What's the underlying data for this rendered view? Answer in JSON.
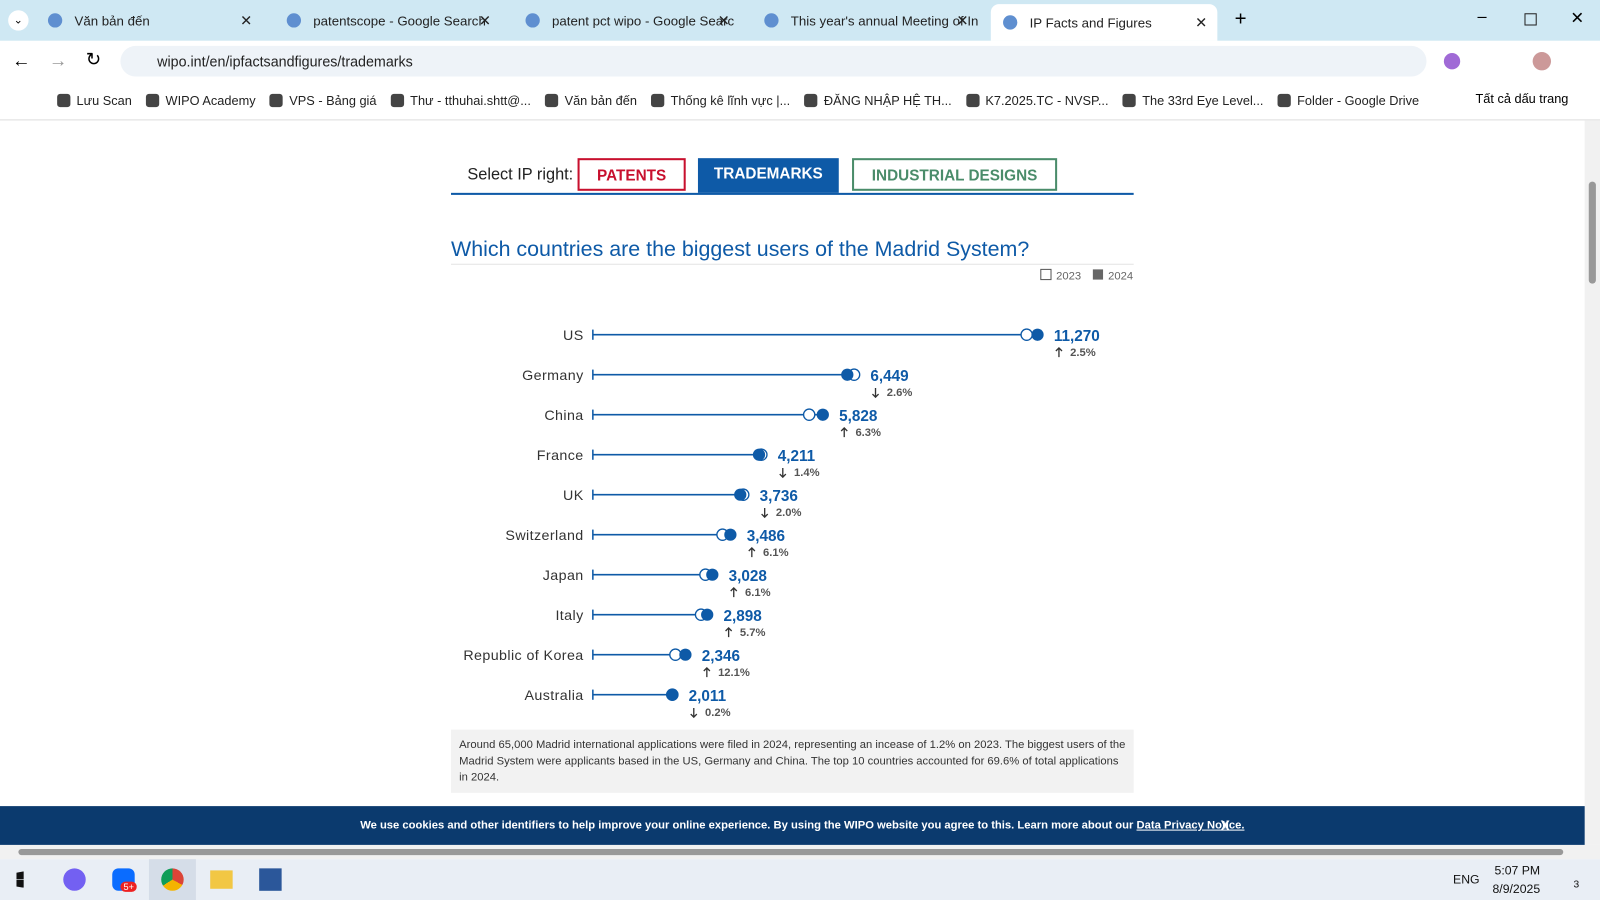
{
  "tabs": [
    {
      "title": "Văn bản đến"
    },
    {
      "title": "patentscope - Google Search"
    },
    {
      "title": "patent pct wipo - Google Searc"
    },
    {
      "title": "This year's annual Meeting of In"
    },
    {
      "title": "IP Facts and Figures"
    }
  ],
  "url": "wipo.int/en/ipfactsandfigures/trademarks",
  "bookmarks": [
    "Lưu Scan",
    "WIPO Academy",
    "VPS - Bảng giá",
    "Thư - tthuhai.shtt@...",
    "Văn bản đến",
    "Thống kê lĩnh vực |...",
    "ĐĂNG NHẬP HỆ TH...",
    "K7.2025.TC - NVSP...",
    "The 33rd Eye Level...",
    "Folder - Google Drive"
  ],
  "all_bookmarks": "Tất cả dấu trang",
  "selector": {
    "label": "Select IP right:",
    "options": [
      "PATENTS",
      "TRADEMARKS",
      "INDUSTRIAL DESIGNS"
    ]
  },
  "chart_data": {
    "type": "dumbbell",
    "title": "Which countries are the biggest users of the Madrid System?",
    "categories": [
      "US",
      "Germany",
      "China",
      "France",
      "UK",
      "Switzerland",
      "Japan",
      "Italy",
      "Republic of Korea",
      "Australia"
    ],
    "series": [
      {
        "name": "2023",
        "color": "#0e5aa7",
        "values": [
          10995,
          6621,
          5483,
          4271,
          3812,
          3286,
          2854,
          2742,
          2093,
          2015
        ]
      },
      {
        "name": "2024",
        "color": "#0e5aa7",
        "values": [
          11270,
          6449,
          5828,
          4211,
          3736,
          3486,
          3028,
          2898,
          2346,
          2011
        ],
        "value_labels": [
          "11,270",
          "6,449",
          "5,828",
          "4,211",
          "3,736",
          "3,486",
          "3,028",
          "2,898",
          "2,346",
          "2,011"
        ]
      }
    ],
    "changes": [
      {
        "value": 2.5,
        "label": "2.5%"
      },
      {
        "value": -2.6,
        "label": "2.6%"
      },
      {
        "value": 6.3,
        "label": "6.3%"
      },
      {
        "value": -1.4,
        "label": "1.4%"
      },
      {
        "value": -2.0,
        "label": "2.0%"
      },
      {
        "value": 6.1,
        "label": "6.1%"
      },
      {
        "value": 6.1,
        "label": "6.1%"
      },
      {
        "value": 5.7,
        "label": "5.7%"
      },
      {
        "value": 12.1,
        "label": "12.1%"
      },
      {
        "value": -0.2,
        "label": "0.2%"
      }
    ],
    "xlim": [
      0,
      12000
    ]
  },
  "description": "Around 65,000 Madrid international applications were filed in 2024, representing an incease of 1.2% on 2023. The biggest users of the Madrid System were applicants based in the US, Germany and China. The top 10 countries accounted for 69.6% of total applications in 2024.",
  "cookie": {
    "text": "We use cookies and other identifiers to help improve your online experience. By using the WIPO website you agree to this. Learn more about our ",
    "link": "Data Privacy Notice.",
    "close": "X"
  },
  "taskbar": {
    "badge": "5+",
    "language": "ENG",
    "time": "5:07 PM",
    "date": "8/9/2025",
    "notifications": "3"
  }
}
